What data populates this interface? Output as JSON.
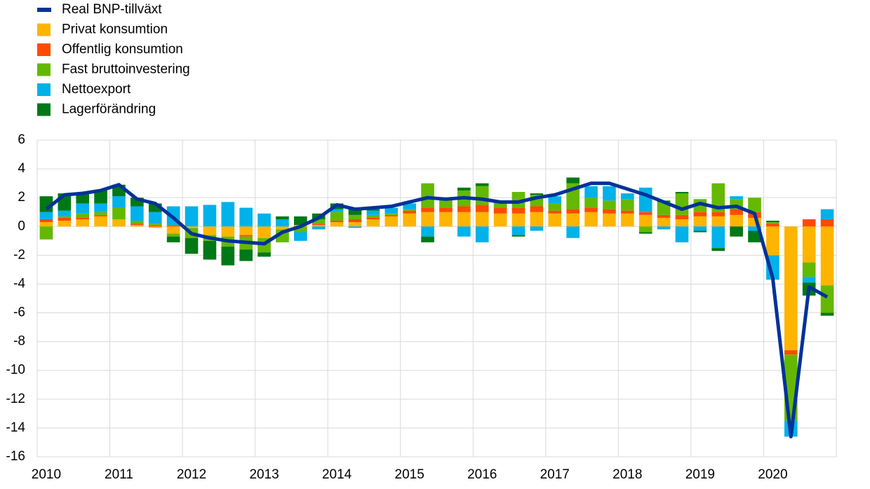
{
  "chart_data": {
    "type": "bar",
    "categories": [
      "2010",
      null,
      null,
      null,
      "2011",
      null,
      null,
      null,
      "2012",
      null,
      null,
      null,
      "2013",
      null,
      null,
      null,
      "2014",
      null,
      null,
      null,
      "2015",
      null,
      null,
      null,
      "2016",
      null,
      null,
      null,
      "2017",
      null,
      null,
      null,
      "2018",
      null,
      null,
      null,
      "2019",
      null,
      null,
      null,
      "2020",
      null,
      null,
      null
    ],
    "series": [
      {
        "name": "Real BNP-tillväxt",
        "type": "line",
        "color": "#003299",
        "values": [
          1.2,
          2.2,
          2.3,
          2.5,
          2.9,
          1.9,
          1.6,
          0.6,
          -0.5,
          -0.8,
          -1.0,
          -1.1,
          -1.2,
          -0.4,
          0.0,
          0.6,
          1.5,
          1.2,
          1.3,
          1.4,
          1.7,
          2.0,
          1.9,
          2.0,
          1.9,
          1.7,
          1.7,
          2.0,
          2.2,
          2.6,
          3.0,
          3.0,
          2.6,
          2.2,
          1.7,
          1.2,
          1.6,
          1.3,
          1.4,
          0.9,
          -3.6,
          -14.6,
          -4.2,
          -4.9
        ]
      },
      {
        "name": "Privat konsumtion",
        "type": "bar",
        "color": "#ffb400",
        "values": [
          0.3,
          0.4,
          0.5,
          0.7,
          0.5,
          0.1,
          -0.1,
          -0.5,
          -0.1,
          -0.6,
          -0.7,
          -0.6,
          -0.8,
          -0.2,
          0.1,
          0.1,
          0.3,
          0.3,
          0.5,
          0.7,
          0.9,
          1.0,
          1.0,
          1.0,
          1.0,
          0.9,
          0.9,
          1.0,
          0.9,
          0.9,
          1.0,
          0.9,
          0.9,
          0.8,
          0.6,
          0.5,
          0.7,
          0.7,
          0.8,
          0.6,
          -2.0,
          -8.6,
          -2.5,
          -4.1
        ]
      },
      {
        "name": "Offentlig konsumtion",
        "type": "bar",
        "color": "#ff4b00",
        "values": [
          0.2,
          0.2,
          0.1,
          0.1,
          0.0,
          0.1,
          0.1,
          0.1,
          0.0,
          0.0,
          0.0,
          -0.1,
          0.0,
          0.0,
          0.0,
          0.1,
          0.1,
          0.2,
          0.1,
          0.1,
          0.2,
          0.3,
          0.3,
          0.4,
          0.5,
          0.4,
          0.4,
          0.4,
          0.2,
          0.3,
          0.3,
          0.3,
          0.2,
          0.2,
          0.2,
          0.3,
          0.3,
          0.3,
          0.4,
          0.4,
          0.2,
          -0.3,
          0.5,
          0.5
        ]
      },
      {
        "name": "Fast bruttoinvestering",
        "type": "bar",
        "color": "#65b800",
        "values": [
          -0.9,
          0.1,
          0.3,
          0.2,
          0.8,
          0.2,
          0.1,
          -0.2,
          -0.7,
          -0.4,
          -0.7,
          -0.9,
          -1.0,
          -0.9,
          -0.4,
          0.3,
          0.6,
          0.3,
          0.2,
          0.1,
          0.1,
          1.7,
          0.6,
          1.1,
          1.3,
          0.3,
          1.1,
          0.8,
          0.5,
          1.8,
          0.7,
          0.6,
          0.8,
          -0.4,
          0.9,
          1.5,
          0.9,
          2.0,
          0.7,
          1.0,
          0.1,
          -4.6,
          -1.0,
          -1.9
        ]
      },
      {
        "name": "Nettoexport",
        "type": "bar",
        "color": "#00b1ea",
        "values": [
          0.5,
          0.4,
          0.7,
          0.6,
          0.8,
          1.0,
          0.8,
          1.3,
          1.4,
          1.5,
          1.7,
          1.3,
          0.9,
          0.5,
          -0.6,
          -0.2,
          0.2,
          -0.1,
          0.3,
          0.4,
          0.4,
          -0.7,
          0.0,
          -0.7,
          -1.1,
          0.1,
          -0.6,
          -0.3,
          0.5,
          -0.8,
          0.8,
          1.0,
          0.4,
          1.7,
          -0.2,
          -1.1,
          -0.3,
          -1.5,
          0.2,
          -0.3,
          -1.7,
          -1.1,
          -0.4,
          0.7
        ]
      },
      {
        "name": "Lagerförändring",
        "type": "bar",
        "color": "#007816",
        "values": [
          1.1,
          1.2,
          0.7,
          0.9,
          0.8,
          0.6,
          0.6,
          -0.4,
          -1.1,
          -1.3,
          -1.3,
          -0.8,
          -0.3,
          0.2,
          0.6,
          0.4,
          0.4,
          0.5,
          0.1,
          0.0,
          0.0,
          -0.4,
          0.0,
          0.2,
          0.2,
          0.0,
          -0.1,
          0.1,
          0.0,
          0.4,
          0.0,
          0.0,
          0.0,
          -0.1,
          0.1,
          0.1,
          -0.1,
          -0.2,
          -0.7,
          -0.8,
          0.1,
          0.0,
          -0.9,
          -0.2
        ]
      }
    ],
    "ylim": [
      -16,
      6
    ],
    "yticks": [
      -16,
      -14,
      -12,
      -10,
      -8,
      -6,
      -4,
      -2,
      0,
      2,
      4,
      6
    ],
    "grid": true
  }
}
